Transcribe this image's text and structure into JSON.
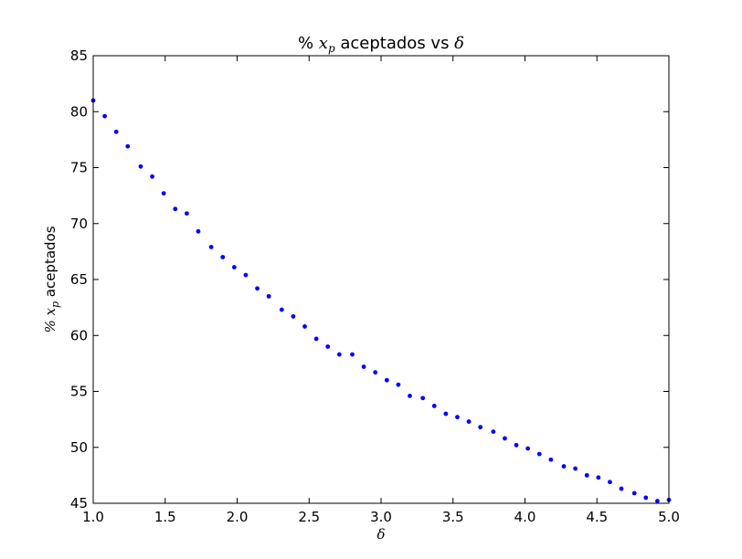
{
  "chart_data": {
    "type": "scatter",
    "title": {
      "pre": "% ",
      "math": "x",
      "sub": "p",
      "mid": " aceptados vs ",
      "post_math": "δ"
    },
    "xlabel": "δ",
    "ylabel": {
      "pre": "% ",
      "math": "x",
      "sub": "p",
      "post": " aceptados"
    },
    "xlim": [
      1.0,
      5.0
    ],
    "ylim": [
      45,
      85
    ],
    "xticks": [
      "1.0",
      "1.5",
      "2.0",
      "2.5",
      "3.0",
      "3.5",
      "4.0",
      "4.5",
      "5.0"
    ],
    "yticks": [
      "45",
      "50",
      "55",
      "60",
      "65",
      "70",
      "75",
      "80",
      "85"
    ],
    "grid": false,
    "marker_color": "#0000ff",
    "series": [
      {
        "x": [
          1.0,
          1.08,
          1.16,
          1.24,
          1.33,
          1.41,
          1.49,
          1.57,
          1.65,
          1.73,
          1.82,
          1.9,
          1.98,
          2.06,
          2.14,
          2.22,
          2.31,
          2.39,
          2.47,
          2.55,
          2.63,
          2.71,
          2.8,
          2.88,
          2.96,
          3.04,
          3.12,
          3.2,
          3.29,
          3.37,
          3.45,
          3.53,
          3.61,
          3.69,
          3.78,
          3.86,
          3.94,
          4.02,
          4.1,
          4.18,
          4.27,
          4.35,
          4.43,
          4.51,
          4.59,
          4.67,
          4.76,
          4.84,
          4.92,
          5.0
        ],
        "y": [
          81.0,
          79.6,
          78.2,
          76.9,
          75.1,
          74.2,
          72.7,
          71.3,
          70.9,
          69.3,
          67.9,
          67.0,
          66.1,
          65.4,
          64.2,
          63.5,
          62.3,
          61.7,
          60.8,
          59.7,
          59.0,
          58.3,
          58.3,
          57.2,
          56.7,
          56.0,
          55.6,
          54.6,
          54.4,
          53.7,
          53.0,
          52.7,
          52.3,
          51.8,
          51.4,
          50.8,
          50.2,
          49.9,
          49.4,
          48.9,
          48.3,
          48.1,
          47.5,
          47.3,
          46.9,
          46.3,
          45.9,
          45.5,
          45.2,
          45.3
        ]
      }
    ]
  }
}
